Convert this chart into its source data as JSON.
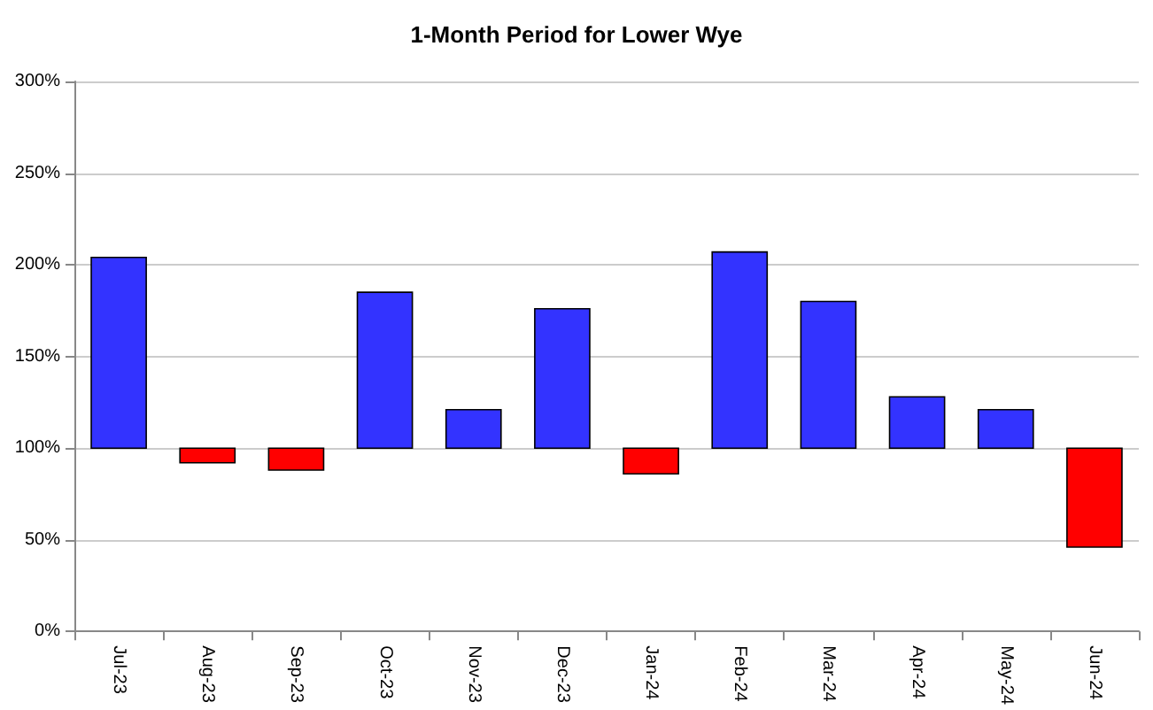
{
  "chart_data": {
    "type": "bar",
    "title": "1-Month Period for Lower Wye",
    "categories": [
      "Jul-23",
      "Aug-23",
      "Sep-23",
      "Oct-23",
      "Nov-23",
      "Dec-23",
      "Jan-24",
      "Feb-24",
      "Mar-24",
      "Apr-24",
      "May-24",
      "Jun-24"
    ],
    "base": [
      100,
      100,
      100,
      100,
      100,
      100,
      100,
      100,
      100,
      100,
      100,
      100
    ],
    "values": [
      104,
      -8,
      -12,
      85,
      21,
      76,
      -14,
      107,
      80,
      28,
      21,
      -54
    ],
    "colors": [
      "#3333ff",
      "#ff0000",
      "#ff0000",
      "#3333ff",
      "#3333ff",
      "#3333ff",
      "#ff0000",
      "#3333ff",
      "#3333ff",
      "#3333ff",
      "#3333ff",
      "#ff0000"
    ],
    "ylim": [
      0,
      300
    ],
    "yticks": [
      {
        "value": 0,
        "label": "0%"
      },
      {
        "value": 50,
        "label": "50%"
      },
      {
        "value": 100,
        "label": "100%"
      },
      {
        "value": 150,
        "label": "150%"
      },
      {
        "value": 200,
        "label": "200%"
      },
      {
        "value": 250,
        "label": "250%"
      },
      {
        "value": 300,
        "label": "300%"
      }
    ],
    "grid": true
  }
}
